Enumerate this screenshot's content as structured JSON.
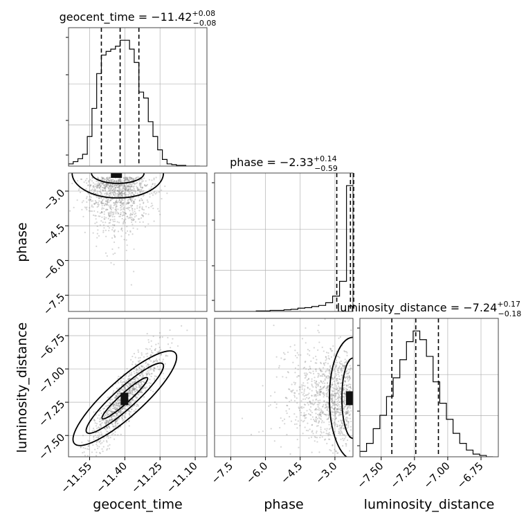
{
  "chart_data": {
    "type": "corner",
    "params": [
      "geocent_time",
      "phase",
      "luminosity_distance"
    ],
    "titles": [
      {
        "param": "geocent_time",
        "text_main": "geocent_time = −11.42",
        "plus": "+0.08",
        "minus": "−0.08"
      },
      {
        "param": "phase",
        "text_main": "phase = −2.33",
        "plus": "+0.14",
        "minus": "−0.59"
      },
      {
        "param": "luminosity_distance",
        "text_main": "luminosity_distance = −7.24",
        "plus": "+0.17",
        "minus": "−0.18"
      }
    ],
    "ranges": {
      "geocent_time": [
        -11.64,
        -11.05
      ],
      "phase": [
        -8.2,
        -2.22
      ],
      "luminosity_distance": [
        -7.66,
        -6.62
      ]
    },
    "ticks": {
      "geocent_time": [
        -11.55,
        -11.4,
        -11.25,
        -11.1
      ],
      "phase": [
        -7.5,
        -6.0,
        -4.5,
        -3.0
      ],
      "luminosity_distance": [
        -7.5,
        -7.25,
        -7.0,
        -6.75
      ]
    },
    "tick_labels": {
      "geocent_time": [
        "−11.55",
        "−11.40",
        "−11.25",
        "−11.10"
      ],
      "phase": [
        "−7.5",
        "−6.0",
        "−4.5",
        "−3.0"
      ],
      "luminosity_distance": [
        "−7.50",
        "−7.25",
        "−7.00",
        "−6.75"
      ]
    },
    "axis_labels": {
      "x": [
        "geocent_time",
        "phase",
        "luminosity_distance"
      ],
      "y": [
        "phase",
        "luminosity_distance"
      ]
    },
    "quantiles": {
      "geocent_time": [
        -11.5,
        -11.42,
        -11.34
      ],
      "phase": [
        -2.92,
        -2.33,
        -2.19
      ],
      "luminosity_distance": [
        -7.42,
        -7.24,
        -7.07
      ]
    },
    "histograms": {
      "geocent_time": {
        "edges": [
          -11.64,
          -11.62,
          -11.6,
          -11.58,
          -11.56,
          -11.54,
          -11.52,
          -11.5,
          -11.48,
          -11.46,
          -11.44,
          -11.42,
          -11.4,
          -11.38,
          -11.36,
          -11.34,
          -11.32,
          -11.3,
          -11.28,
          -11.26,
          -11.24,
          -11.22,
          -11.2,
          -11.18,
          -11.16,
          -11.14,
          -11.12,
          -11.1,
          -11.08
        ],
        "counts": [
          3,
          6,
          10,
          16,
          40,
          78,
          125,
          150,
          155,
          158,
          162,
          170,
          170,
          158,
          140,
          100,
          92,
          60,
          40,
          22,
          9,
          3,
          2,
          1,
          1,
          0,
          0,
          0
        ]
      },
      "phase": {
        "edges": [
          -8.2,
          -7.9,
          -7.6,
          -7.3,
          -7.0,
          -6.7,
          -6.4,
          -6.1,
          -5.8,
          -5.5,
          -5.2,
          -4.9,
          -4.6,
          -4.3,
          -4.0,
          -3.7,
          -3.4,
          -3.1,
          -2.8,
          -2.5,
          -2.22
        ],
        "counts": [
          0,
          0,
          0,
          0,
          0,
          0,
          1,
          1,
          2,
          2,
          3,
          4,
          6,
          7,
          9,
          11,
          16,
          28,
          55,
          230
        ]
      },
      "luminosity_distance": {
        "edges": [
          -7.66,
          -7.61,
          -7.56,
          -7.51,
          -7.46,
          -7.41,
          -7.36,
          -7.31,
          -7.26,
          -7.21,
          -7.16,
          -7.11,
          -7.06,
          -7.01,
          -6.96,
          -6.91,
          -6.86,
          -6.81,
          -6.76,
          -6.71,
          -6.66
        ],
        "counts": [
          8,
          20,
          42,
          62,
          90,
          118,
          145,
          172,
          188,
          175,
          150,
          112,
          80,
          56,
          35,
          20,
          10,
          4,
          2,
          0
        ]
      }
    },
    "pairs": [
      {
        "x": "geocent_time",
        "y": "phase",
        "contour_levels": 2
      },
      {
        "x": "geocent_time",
        "y": "luminosity_distance",
        "contour_levels": 3
      },
      {
        "x": "phase",
        "y": "luminosity_distance",
        "contour_levels": 2
      }
    ],
    "grid": true
  }
}
